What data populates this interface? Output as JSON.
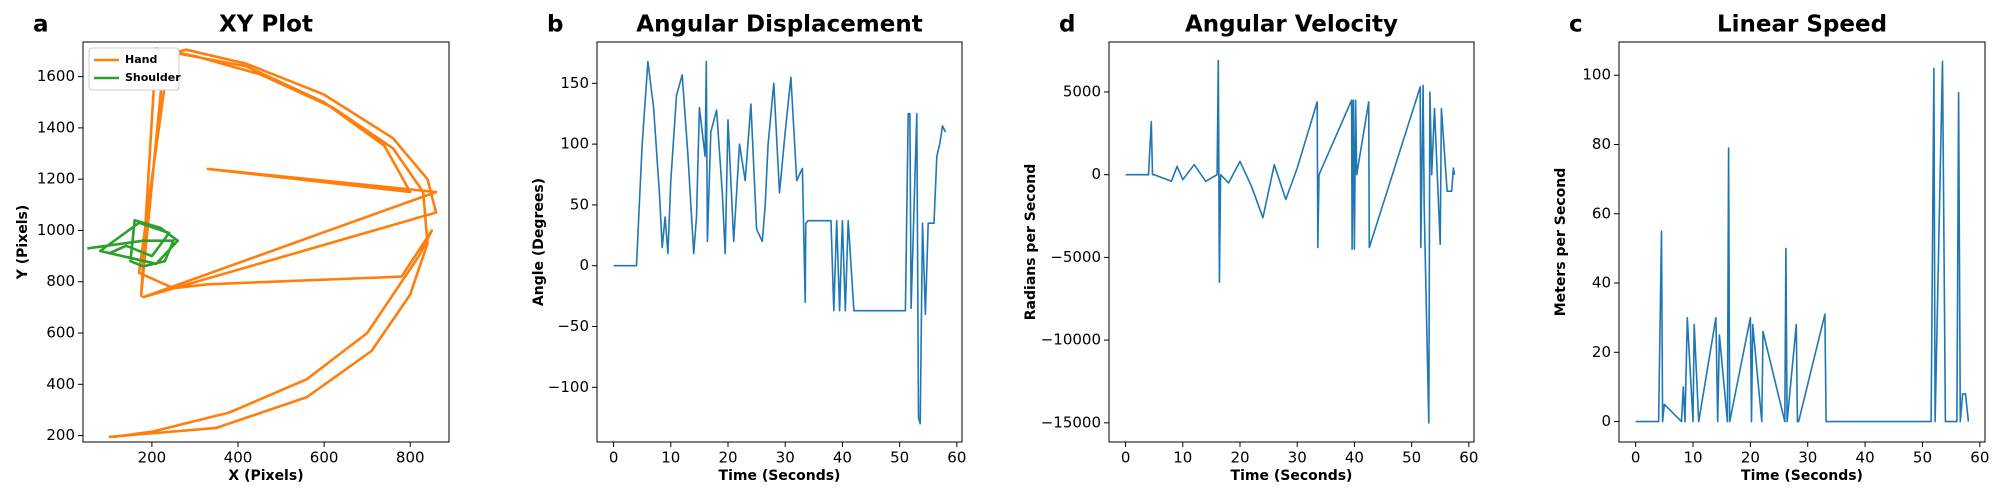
{
  "chart_data": [
    {
      "type": "line",
      "panel": "a",
      "title": "XY Plot",
      "xlabel": "X (Pixels)",
      "ylabel": "Y (Pixels)",
      "xlim": [
        40,
        890
      ],
      "ylim": [
        175,
        1735
      ],
      "xticks": [
        200,
        400,
        600,
        800
      ],
      "yticks": [
        200,
        400,
        600,
        800,
        1000,
        1200,
        1400,
        1600
      ],
      "legend": "upper left",
      "series": [
        {
          "name": "Hand",
          "color": "#ff7f0e",
          "x": [
            100,
            350,
            560,
            710,
            800,
            840,
            830,
            760,
            620,
            450,
            300,
            210,
            175,
            230,
            420,
            600,
            740,
            800,
            330,
            860,
            180,
            860,
            840,
            760,
            600,
            420,
            280,
            240,
            170,
            250,
            330,
            780,
            850,
            820,
            700,
            560,
            380,
            200,
            110
          ],
          "values": [
            195,
            230,
            350,
            530,
            750,
            950,
            1150,
            1320,
            1480,
            1610,
            1680,
            1710,
            745,
            1700,
            1640,
            1500,
            1330,
            1150,
            1240,
            1150,
            740,
            1070,
            1200,
            1360,
            1530,
            1650,
            1705,
            1690,
            835,
            775,
            790,
            820,
            1000,
            900,
            600,
            420,
            290,
            215,
            195
          ]
        },
        {
          "name": "Shoulder",
          "color": "#2ca02c",
          "x": [
            50,
            180,
            250,
            230,
            180,
            150,
            160,
            220,
            260,
            210,
            80,
            170,
            240,
            200,
            140,
            100
          ],
          "values": [
            930,
            960,
            960,
            880,
            860,
            880,
            1040,
            1010,
            960,
            870,
            920,
            1030,
            990,
            900,
            940,
            910
          ]
        }
      ]
    },
    {
      "type": "line",
      "panel": "b",
      "title": "Angular Displacement",
      "xlabel": "Time (Seconds)",
      "ylabel": "Angle (Degrees)",
      "xlim": [
        -2.9,
        60.9
      ],
      "ylim": [
        -145,
        184
      ],
      "xticks": [
        0,
        10,
        20,
        30,
        40,
        50,
        60
      ],
      "yticks": [
        {
          "value": -100,
          "label": "−100"
        },
        {
          "value": -50,
          "label": "−50"
        },
        0,
        50,
        100,
        150
      ],
      "series": [
        {
          "color": "#1f77b4",
          "x": [
            0,
            4,
            4.5,
            5,
            6,
            7,
            8,
            8.5,
            9,
            9.5,
            10,
            11,
            12,
            13,
            14,
            14.5,
            15,
            16,
            16.2,
            16.4,
            17,
            18,
            19,
            19.5,
            20,
            21,
            22,
            23,
            24,
            25,
            26,
            26.5,
            27,
            28,
            29,
            30,
            31,
            32,
            33,
            33.5,
            33.6,
            34,
            36,
            38,
            38.5,
            39,
            39.5,
            40,
            40.5,
            41,
            42,
            44,
            46,
            48,
            50,
            51,
            51.5,
            51.8,
            52,
            53,
            53.3,
            53.6,
            54,
            54.5,
            55,
            56,
            56.5,
            57,
            57.5,
            58
          ],
          "values": [
            0,
            0,
            50,
            100,
            168,
            130,
            60,
            15,
            40,
            10,
            70,
            140,
            157,
            90,
            10,
            40,
            130,
            90,
            168,
            20,
            110,
            128,
            60,
            10,
            120,
            20,
            100,
            70,
            133,
            30,
            20,
            50,
            100,
            150,
            60,
            110,
            155,
            70,
            80,
            -30,
            35,
            37,
            37,
            37,
            -37,
            37,
            -37,
            37,
            -37,
            37,
            -37,
            -37,
            -37,
            -37,
            -37,
            -37,
            125,
            125,
            -35,
            125,
            -125,
            -130,
            35,
            -40,
            35,
            35,
            90,
            100,
            115,
            110
          ]
        }
      ]
    },
    {
      "type": "line",
      "panel": "d",
      "title": "Angular Velocity",
      "xlabel": "Time (Seconds)",
      "ylabel": "Radians per Second",
      "xlim": [
        -2.9,
        60.9
      ],
      "ylim": [
        -16160,
        8020
      ],
      "xticks": [
        0,
        10,
        20,
        30,
        40,
        50,
        60
      ],
      "yticks": [
        {
          "value": -15000,
          "label": "−15000"
        },
        {
          "value": -10000,
          "label": "−10000"
        },
        {
          "value": -5000,
          "label": "−5000"
        },
        0,
        5000
      ],
      "series": [
        {
          "color": "#1f77b4",
          "x": [
            0,
            4,
            4.5,
            4.7,
            5,
            8,
            9,
            10,
            12,
            14,
            16,
            16.2,
            16.4,
            16.6,
            18,
            20,
            22,
            24,
            26,
            28,
            30,
            33.5,
            33.6,
            33.8,
            39.5,
            39.6,
            39.8,
            40,
            40.2,
            40.4,
            42.5,
            42.6,
            51.5,
            51.6,
            52,
            52.2,
            53,
            53.2,
            53.5,
            54,
            55,
            55.2,
            56,
            56.2,
            57,
            57.3,
            57.5
          ],
          "values": [
            0,
            0,
            3200,
            0,
            0,
            -400,
            500,
            -300,
            600,
            -400,
            0,
            6900,
            -6500,
            0,
            -500,
            800,
            -700,
            -2600,
            600,
            -1500,
            400,
            4400,
            -4400,
            0,
            4500,
            -4500,
            4500,
            -4500,
            4500,
            0,
            4400,
            -4400,
            5300,
            -4400,
            5400,
            -2000,
            -15000,
            5000,
            0,
            4000,
            -4200,
            4000,
            0,
            -1000,
            -1000,
            400,
            0
          ]
        }
      ]
    },
    {
      "type": "line",
      "panel": "c",
      "title": "Linear Speed",
      "xlabel": "Time (Seconds)",
      "ylabel": "Meters per Second",
      "xlim": [
        -2.9,
        60.9
      ],
      "ylim": [
        -5.9,
        109.6
      ],
      "xticks": [
        0,
        10,
        20,
        30,
        40,
        50,
        60
      ],
      "yticks": [
        0,
        20,
        40,
        60,
        80,
        100
      ],
      "series": [
        {
          "color": "#1f77b4",
          "x": [
            0,
            4,
            4.5,
            4.7,
            5,
            8,
            8.3,
            8.6,
            9,
            10,
            10.2,
            11,
            14,
            14.3,
            14.6,
            16,
            16.2,
            16.4,
            20,
            20.2,
            20.4,
            22,
            22.2,
            26,
            26.2,
            26.4,
            28,
            28.2,
            28.4,
            33,
            33.2,
            33.4,
            40,
            51.5,
            52,
            52.2,
            53.5,
            54,
            56,
            56.3,
            56.6,
            57,
            57.5,
            58
          ],
          "values": [
            0,
            0,
            55,
            0,
            5,
            0,
            10,
            0,
            30,
            0,
            28,
            0,
            30,
            0,
            25,
            0,
            79,
            0,
            30,
            0,
            28,
            0,
            26,
            0,
            50,
            0,
            28,
            0,
            0,
            31,
            0,
            0,
            0,
            0,
            102,
            0,
            104,
            0,
            0,
            95,
            0,
            8,
            8,
            0
          ]
        }
      ]
    }
  ]
}
